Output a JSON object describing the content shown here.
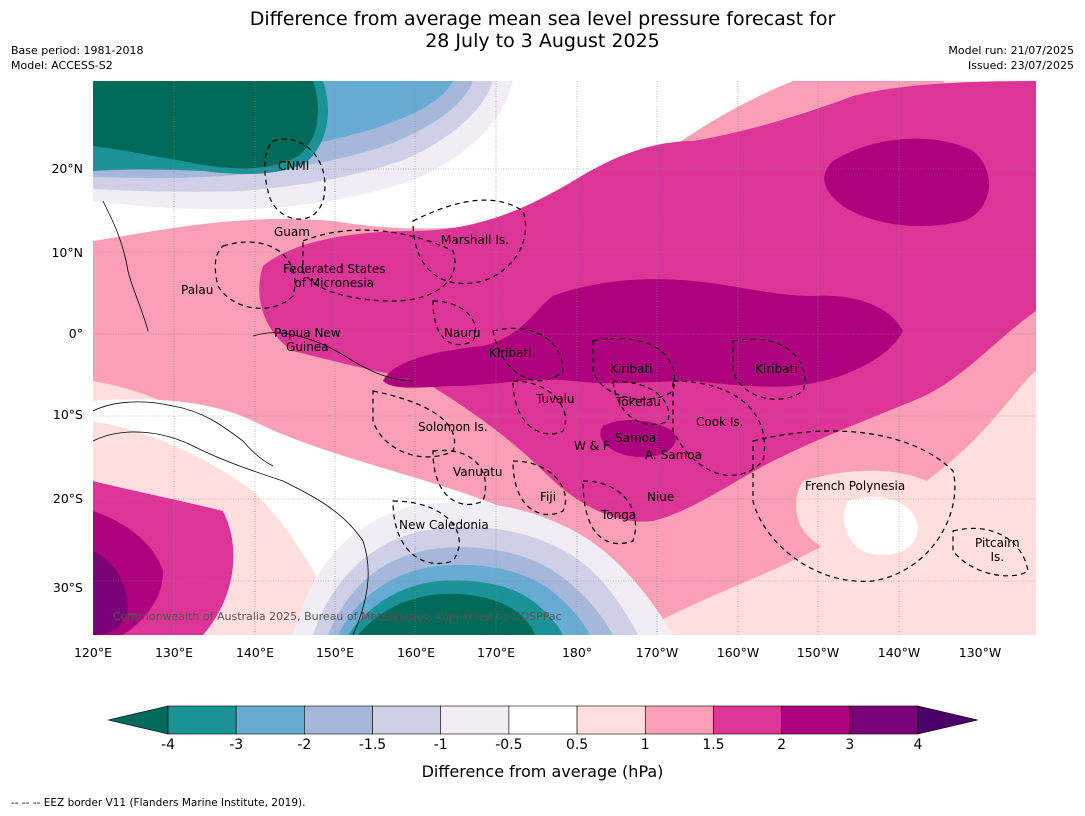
{
  "header": {
    "title_line1": "Difference from average mean sea level pressure forecast for",
    "title_line2": "28 July to 3 August 2025",
    "base_period": "Base period: 1981-2018",
    "model": "Model: ACCESS-S2",
    "model_run": "Model run: 21/07/2025",
    "issued": "Issued: 23/07/2025"
  },
  "map": {
    "credit": "Commonwealth of Australia 2025, Bureau of Meteorology, supported by COSPPac",
    "lat_labels": [
      "20°N",
      "10°N",
      "0°",
      "10°S",
      "20°S",
      "30°S"
    ],
    "lon_labels": [
      "120°E",
      "130°E",
      "140°E",
      "150°E",
      "160°E",
      "170°E",
      "180°",
      "170°W",
      "160°W",
      "150°W",
      "140°W",
      "130°W"
    ],
    "regions": {
      "cnmi": "CNMI",
      "guam": "Guam",
      "marshall": "Marshall Is.",
      "fsm1": "Federated States",
      "fsm2": "of Micronesia",
      "palau": "Palau",
      "png1": "Papua New",
      "png2": "Guinea",
      "nauru": "Nauru",
      "kiribati_w": "Kiribati",
      "kiribati_c": "Kiribati",
      "kiribati_e": "Kiribati",
      "tuvalu": "Tuvalu",
      "tokelau": "Tokelau",
      "cook": "Cook Is.",
      "solomon": "Solomon Is.",
      "samoa": "Samoa",
      "wf": "W & F",
      "asamoa": "A. Samoa",
      "vanuatu": "Vanuatu",
      "fiji": "Fiji",
      "niue": "Niue",
      "tonga": "Tonga",
      "frpoly": "French Polynesia",
      "newcal": "New Caledonia",
      "pitcairn1": "Pitcairn",
      "pitcairn2": "Is."
    }
  },
  "colorbar": {
    "title": "Difference from average (hPa)",
    "ticks": [
      "-4",
      "-3",
      "-2",
      "-1.5",
      "-1",
      "-0.5",
      "0.5",
      "1",
      "1.5",
      "2",
      "3",
      "4"
    ],
    "colors": {
      "below_min": "#006a58",
      "bins": [
        "#1a9296",
        "#67abd3",
        "#a6b8da",
        "#cfd0e7",
        "#f1edf4",
        "#ffffff",
        "#fedfdd",
        "#fa9fb5",
        "#dd3597",
        "#ad017e",
        "#7a0177"
      ],
      "above_max": "#49006a"
    }
  },
  "footer": {
    "legend_symbol": "--  --  --",
    "legend_text": "EEZ border V11 (Flanders Marine Institute, 2019)."
  }
}
